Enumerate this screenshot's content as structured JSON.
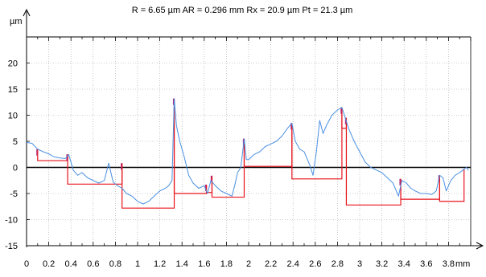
{
  "header": {
    "stats_text": "R = 6.65 µm  AR = 0.296 mm  Rx = 20.9 µm Pt = 21.3 µm"
  },
  "chart_data": {
    "type": "line",
    "title": "",
    "ylabel": "µm",
    "xlabel_unit": "mm",
    "xlim": [
      0,
      4.0
    ],
    "ylim": [
      -15,
      25
    ],
    "x_ticks": [
      "0",
      "0.2",
      "0.4",
      "0.6",
      "0.8",
      "1",
      "1.2",
      "1.4",
      "1.6",
      "1.8",
      "2",
      "2.2",
      "2.4",
      "2.6",
      "2.8",
      "3",
      "3.2",
      "3.4",
      "3.6",
      "3.8"
    ],
    "x_tick_values": [
      0,
      0.2,
      0.4,
      0.6,
      0.8,
      1.0,
      1.2,
      1.4,
      1.6,
      1.8,
      2.0,
      2.2,
      2.4,
      2.6,
      2.8,
      3.0,
      3.2,
      3.4,
      3.6,
      3.8
    ],
    "y_ticks": [
      "-15",
      "-10",
      "-5",
      "0",
      "5",
      "10",
      "15",
      "20"
    ],
    "y_tick_values": [
      -15,
      -10,
      -5,
      0,
      5,
      10,
      15,
      20
    ],
    "grid": true,
    "colors": {
      "profile": "#4a90e2",
      "motifs": "#e8141c",
      "motif_peaks": "#b0287a",
      "zero_line": "#000000",
      "grid": "#a0a0a0"
    },
    "series": [
      {
        "role": "roughness-profile",
        "x": [
          0,
          0.05,
          0.1,
          0.15,
          0.2,
          0.25,
          0.3,
          0.35,
          0.38,
          0.42,
          0.46,
          0.5,
          0.55,
          0.6,
          0.65,
          0.7,
          0.74,
          0.78,
          0.82,
          0.86,
          0.9,
          0.95,
          1.0,
          1.05,
          1.1,
          1.15,
          1.2,
          1.25,
          1.28,
          1.31,
          1.33,
          1.35,
          1.38,
          1.42,
          1.46,
          1.5,
          1.55,
          1.6,
          1.63,
          1.66,
          1.7,
          1.75,
          1.8,
          1.85,
          1.88,
          1.9,
          1.93,
          1.96,
          1.98,
          2.0,
          2.05,
          2.1,
          2.15,
          2.2,
          2.25,
          2.3,
          2.35,
          2.39,
          2.42,
          2.46,
          2.5,
          2.55,
          2.58,
          2.61,
          2.64,
          2.67,
          2.7,
          2.75,
          2.8,
          2.84,
          2.87,
          2.9,
          2.95,
          3.0,
          3.05,
          3.1,
          3.15,
          3.2,
          3.25,
          3.3,
          3.35,
          3.38,
          3.42,
          3.46,
          3.5,
          3.55,
          3.6,
          3.65,
          3.69,
          3.72,
          3.75,
          3.78,
          3.82,
          3.86,
          3.9,
          3.93,
          3.96,
          3.98
        ],
        "y": [
          4.8,
          4.6,
          3.5,
          3.0,
          2.6,
          2.0,
          1.8,
          1.7,
          2.5,
          -0.5,
          -1.5,
          -1.0,
          -2.0,
          -2.5,
          -3.0,
          -2.5,
          0.8,
          -2.8,
          -3.5,
          -4.0,
          -5.0,
          -5.5,
          -6.5,
          -7.0,
          -6.5,
          -5.5,
          -4.5,
          -4.0,
          -3.5,
          -2.5,
          13.2,
          8.0,
          5.0,
          2.0,
          -1.5,
          -3.0,
          -4.0,
          -3.5,
          -5.0,
          -2.5,
          -3.5,
          -4.5,
          -5.0,
          -5.5,
          -3.0,
          -1.0,
          0.0,
          5.5,
          1.5,
          1.5,
          2.5,
          3.0,
          4.0,
          4.5,
          5.0,
          6.0,
          7.5,
          8.5,
          5.0,
          3.5,
          3.0,
          0.5,
          -1.5,
          3.0,
          9.0,
          6.5,
          8.0,
          10.0,
          11.0,
          11.5,
          9.5,
          7.5,
          5.0,
          3.0,
          1.0,
          0.0,
          -0.5,
          -1.0,
          -2.0,
          -3.0,
          -5.5,
          -2.5,
          -3.0,
          -4.0,
          -4.5,
          -5.0,
          -5.0,
          -5.2,
          -4.5,
          -1.5,
          -2.0,
          -4.5,
          -2.5,
          -1.5,
          -1.0,
          -0.5,
          0.0,
          -0.5
        ]
      }
    ],
    "motifs": [
      {
        "x_start": 0.1,
        "x_end": 0.37,
        "depth": 1.3,
        "left_peak": 3.5,
        "right_peak": 2.5
      },
      {
        "x_start": 0.37,
        "x_end": 0.86,
        "depth": -3.2,
        "left_peak": 2.5,
        "right_peak": 0.8
      },
      {
        "x_start": 0.86,
        "x_end": 1.33,
        "depth": -7.8,
        "left_peak": 0.8,
        "right_peak": 13.2
      },
      {
        "x_start": 1.33,
        "x_end": 1.62,
        "depth": -5.0,
        "left_peak": 13.2,
        "right_peak": -3.3
      },
      {
        "x_start": 1.62,
        "x_end": 1.67,
        "depth": -4.8,
        "left_peak": -3.3,
        "right_peak": -1.6
      },
      {
        "x_start": 1.67,
        "x_end": 1.96,
        "depth": -5.7,
        "left_peak": -1.6,
        "right_peak": 5.5
      },
      {
        "x_start": 1.96,
        "x_end": 2.39,
        "depth": 0.2,
        "left_peak": 5.5,
        "right_peak": 8.5
      },
      {
        "x_start": 2.39,
        "x_end": 2.84,
        "depth": -2.2,
        "left_peak": 8.5,
        "right_peak": 11.5
      },
      {
        "x_start": 2.84,
        "x_end": 2.88,
        "depth": 7.5,
        "left_peak": 11.5,
        "right_peak": 9.5
      },
      {
        "x_start": 2.88,
        "x_end": 3.37,
        "depth": -7.2,
        "left_peak": 9.5,
        "right_peak": -2.2
      },
      {
        "x_start": 3.37,
        "x_end": 3.72,
        "depth": -6.1,
        "left_peak": -2.2,
        "right_peak": -1.5
      },
      {
        "x_start": 3.72,
        "x_end": 3.94,
        "depth": -6.5,
        "left_peak": -1.5,
        "right_peak": -0.3
      }
    ]
  }
}
